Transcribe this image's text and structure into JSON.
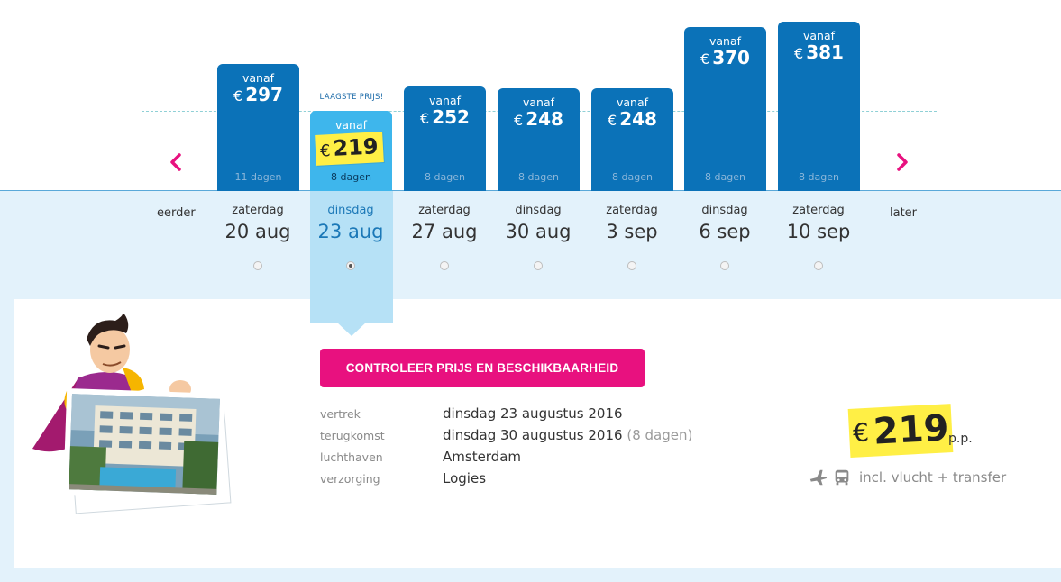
{
  "calendar": {
    "lowest_label": "LAAGSTE PRIJS!",
    "prev_label": "eerder",
    "next_label": "later",
    "options": [
      {
        "vanaf": "vanaf",
        "currency": "€",
        "price": "297",
        "duration": "11 dagen",
        "weekday": "zaterdag",
        "date": "20 aug",
        "price_value": 297,
        "selected": false
      },
      {
        "vanaf": "vanaf",
        "currency": "€",
        "price": "219",
        "duration": "8 dagen",
        "weekday": "dinsdag",
        "date": "23 aug",
        "price_value": 219,
        "selected": true
      },
      {
        "vanaf": "vanaf",
        "currency": "€",
        "price": "252",
        "duration": "8 dagen",
        "weekday": "zaterdag",
        "date": "27 aug",
        "price_value": 252,
        "selected": false
      },
      {
        "vanaf": "vanaf",
        "currency": "€",
        "price": "248",
        "duration": "8 dagen",
        "weekday": "dinsdag",
        "date": "30 aug",
        "price_value": 248,
        "selected": false
      },
      {
        "vanaf": "vanaf",
        "currency": "€",
        "price": "248",
        "duration": "8 dagen",
        "weekday": "zaterdag",
        "date": "3 sep",
        "price_value": 248,
        "selected": false
      },
      {
        "vanaf": "vanaf",
        "currency": "€",
        "price": "370",
        "duration": "8 dagen",
        "weekday": "dinsdag",
        "date": "6 sep",
        "price_value": 370,
        "selected": false
      },
      {
        "vanaf": "vanaf",
        "currency": "€",
        "price": "381",
        "duration": "8 dagen",
        "weekday": "zaterdag",
        "date": "10 sep",
        "price_value": 381,
        "selected": false
      }
    ]
  },
  "cta": {
    "label": "CONTROLEER PRIJS EN BESCHIKBAARHEID"
  },
  "details": {
    "vertrek_label": "vertrek",
    "vertrek_value": "dinsdag 23 augustus 2016",
    "terugkomst_label": "terugkomst",
    "terugkomst_value": "dinsdag 30 augustus 2016",
    "terugkomst_extra": "(8 dagen)",
    "luchthaven_label": "luchthaven",
    "luchthaven_value": "Amsterdam",
    "verzorging_label": "verzorging",
    "verzorging_value": "Logies"
  },
  "summary": {
    "currency": "€",
    "price": "219",
    "per_person": "p.p.",
    "included": "incl. vlucht + transfer"
  },
  "colors": {
    "bar": "#0b72b8",
    "bar_selected": "#3eb6ec",
    "highlight": "#ffef45",
    "cta": "#e8117f",
    "band": "#e3f2fb"
  },
  "icons": [
    "chevron-left-icon",
    "chevron-right-icon",
    "plane-icon",
    "bus-icon"
  ]
}
